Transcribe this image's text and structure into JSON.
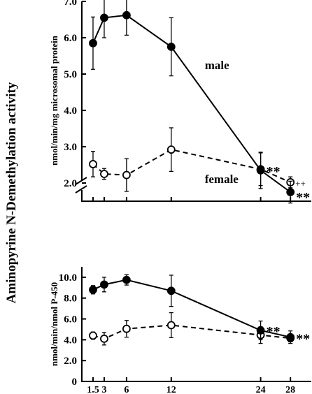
{
  "main_ylabel": "Aminopyrine N-Demethylation activity",
  "colors": {
    "axis": "#000000",
    "marker_filled": "#000000",
    "marker_open": "#ffffff"
  },
  "chart_data": [
    {
      "type": "line",
      "ylabel": "nmol/min/mg microsomal protein",
      "ylim": [
        1.5,
        7.0
      ],
      "yticks": [
        "2.0",
        "3.0",
        "4.0",
        "5.0",
        "6.0",
        "7.0"
      ],
      "axis_break": true,
      "x": [
        1.5,
        3,
        6,
        12,
        24,
        28
      ],
      "series": [
        {
          "name": "male",
          "style": "solid",
          "marker": "filled",
          "values": [
            5.85,
            6.55,
            6.62,
            5.75,
            2.35,
            1.75
          ],
          "errors": [
            0.72,
            0.55,
            0.55,
            0.8,
            0.5,
            0.3
          ]
        },
        {
          "name": "female",
          "style": "dashed",
          "marker": "open",
          "values": [
            2.52,
            2.25,
            2.22,
            2.92,
            2.38,
            2.02
          ],
          "errors": [
            0.35,
            0.15,
            0.45,
            0.6,
            0.45,
            0.15
          ]
        }
      ],
      "annotations": [
        {
          "text": "male",
          "at_x": 16.5,
          "at_y": 5.1
        },
        {
          "text": "female",
          "at_x": 16.5,
          "at_y": 2.35
        },
        {
          "text": "**",
          "at_x": 24,
          "at_y": 2.35
        },
        {
          "text": "++",
          "at_x": 28,
          "at_y": 2.02
        },
        {
          "text": "**",
          "at_x": 28,
          "at_y": 1.75
        }
      ]
    },
    {
      "type": "line",
      "ylabel": "nmol/min/nmol P-450",
      "ylim": [
        0,
        11.0
      ],
      "yticks": [
        "0",
        "2.0",
        "4.0",
        "6.0",
        "8.0",
        "10.0"
      ],
      "x": [
        1.5,
        3,
        6,
        12,
        24,
        28
      ],
      "xticks": [
        "1.5",
        "3",
        "6",
        "12",
        "24",
        "28"
      ],
      "series": [
        {
          "name": "male",
          "style": "solid",
          "marker": "filled",
          "values": [
            8.8,
            9.3,
            9.75,
            8.7,
            4.9,
            4.25
          ],
          "errors": [
            0.4,
            0.7,
            0.5,
            1.5,
            0.9,
            0.6
          ]
        },
        {
          "name": "female",
          "style": "dashed",
          "marker": "open",
          "values": [
            4.4,
            4.1,
            5.05,
            5.4,
            4.45,
            4.15
          ],
          "errors": [
            0.35,
            0.6,
            0.8,
            1.2,
            0.8,
            0.35
          ]
        }
      ],
      "annotations": [
        {
          "text": "**",
          "at_x": 24,
          "at_y": 4.9
        },
        {
          "text": "**",
          "at_x": 28,
          "at_y": 4.2
        }
      ]
    }
  ]
}
